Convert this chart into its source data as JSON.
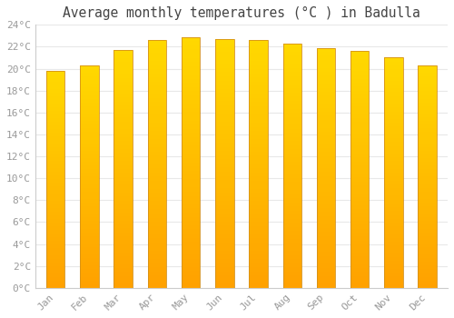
{
  "months": [
    "Jan",
    "Feb",
    "Mar",
    "Apr",
    "May",
    "Jun",
    "Jul",
    "Aug",
    "Sep",
    "Oct",
    "Nov",
    "Dec"
  ],
  "temperatures": [
    19.8,
    20.3,
    21.7,
    22.6,
    22.9,
    22.7,
    22.6,
    22.3,
    21.9,
    21.6,
    21.0,
    20.3
  ],
  "title": "Average monthly temperatures (°C ) in Badulla",
  "ylim": [
    0,
    24
  ],
  "ytick_step": 2,
  "background_color": "#ffffff",
  "grid_color": "#e8e8e8",
  "title_fontsize": 10.5,
  "tick_fontsize": 8,
  "tick_color": "#999999",
  "title_color": "#444444",
  "bar_color_bottom": "#F5A623",
  "bar_color_top": "#FFD966",
  "bar_edge_color": "#D4911A",
  "bar_width": 0.55
}
